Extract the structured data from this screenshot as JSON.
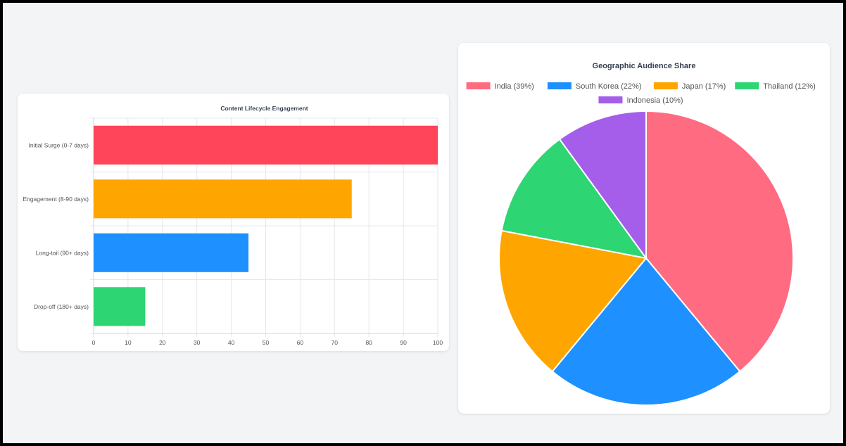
{
  "colors": {
    "red": "#ff4559",
    "orange": "#ffa500",
    "blue": "#1e90ff",
    "green": "#2ed573",
    "pink": "#ff6b81",
    "purple": "#a55eea",
    "grid": "#e5e7eb",
    "title": "#374151"
  },
  "chart_data": [
    {
      "type": "bar",
      "orientation": "horizontal",
      "title": "Content Lifecycle Engagement",
      "categories": [
        "Initial Surge (0-7 days)",
        "Engagement (8-90 days)",
        "Long-tail (90+ days)",
        "Drop-off (180+ days)"
      ],
      "values": [
        100,
        75,
        45,
        15
      ],
      "bar_colors": [
        "#ff4559",
        "#ffa500",
        "#1e90ff",
        "#2ed573"
      ],
      "xlim": [
        0,
        100
      ],
      "xticks": [
        "0",
        "10",
        "20",
        "30",
        "40",
        "50",
        "60",
        "70",
        "80",
        "90",
        "100"
      ],
      "grid": true
    },
    {
      "type": "pie",
      "title": "Geographic Audience Share",
      "legend_position": "top",
      "labels": [
        "India (39%)",
        "South Korea (22%)",
        "Japan (17%)",
        "Thailand (12%)",
        "Indonesia (10%)"
      ],
      "values": [
        39,
        22,
        17,
        12,
        10
      ],
      "slice_colors": [
        "#ff6b81",
        "#1e90ff",
        "#ffa500",
        "#2ed573",
        "#a55eea"
      ]
    }
  ]
}
